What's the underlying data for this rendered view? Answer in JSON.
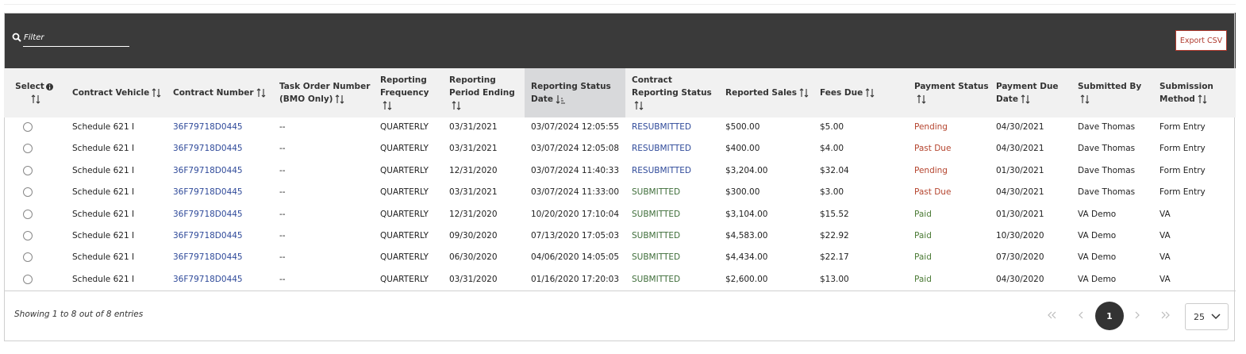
{
  "filter": {
    "placeholder": "Filter"
  },
  "export_button": "Export CSV",
  "table": {
    "headers": [
      "Select",
      "Contract Vehicle",
      "Contract Number",
      "Task Order Number (BMO Only)",
      "Reporting Frequency",
      "Reporting Period Ending",
      "Reporting Status Date",
      "Contract Reporting Status",
      "Reported Sales",
      "Fees Due",
      "Payment Status",
      "Payment Due Date",
      "Submitted By",
      "Submission Method"
    ],
    "rows": [
      [
        "Schedule 621 I",
        {
          "text": "36F79718D0445",
          "color": "#2f4a9a"
        },
        "--",
        "QUARTERLY",
        "03/31/2021",
        "03/07/2024 12:05:55",
        {
          "text": "RESUBMITTED",
          "color": "#2f4a9a"
        },
        "$500.00",
        "$5.00",
        {
          "text": "Pending",
          "color": "#b5452f"
        },
        "04/30/2021",
        "Dave Thomas",
        "Form Entry"
      ],
      [
        "Schedule 621 I",
        {
          "text": "36F79718D0445",
          "color": "#2f4a9a"
        },
        "--",
        "QUARTERLY",
        "03/31/2021",
        "03/07/2024 12:05:08",
        {
          "text": "RESUBMITTED",
          "color": "#2f4a9a"
        },
        "$400.00",
        "$4.00",
        {
          "text": "Past Due",
          "color": "#b5452f"
        },
        "04/30/2021",
        "Dave Thomas",
        "Form Entry"
      ],
      [
        "Schedule 621 I",
        {
          "text": "36F79718D0445",
          "color": "#2f4a9a"
        },
        "--",
        "QUARTERLY",
        "12/31/2020",
        "03/07/2024 11:40:33",
        {
          "text": "RESUBMITTED",
          "color": "#2f4a9a"
        },
        "$3,204.00",
        "$32.04",
        {
          "text": "Pending",
          "color": "#b5452f"
        },
        "01/30/2021",
        "Dave Thomas",
        "Form Entry"
      ],
      [
        "Schedule 621 I",
        {
          "text": "36F79718D0445",
          "color": "#2f4a9a"
        },
        "--",
        "QUARTERLY",
        "03/31/2021",
        "03/07/2024 11:33:00",
        {
          "text": "SUBMITTED",
          "color": "#3f6e3a"
        },
        "$300.00",
        "$3.00",
        {
          "text": "Past Due",
          "color": "#b5452f"
        },
        "04/30/2021",
        "Dave Thomas",
        "Form Entry"
      ],
      [
        "Schedule 621 I",
        {
          "text": "36F79718D0445",
          "color": "#2f4a9a"
        },
        "--",
        "QUARTERLY",
        "12/31/2020",
        "10/20/2020 17:10:04",
        {
          "text": "SUBMITTED",
          "color": "#3f6e3a"
        },
        "$3,104.00",
        "$15.52",
        {
          "text": "Paid",
          "color": "#4a7a34"
        },
        "01/30/2021",
        "VA Demo",
        "VA"
      ],
      [
        "Schedule 621 I",
        {
          "text": "36F79718D0445",
          "color": "#2f4a9a"
        },
        "--",
        "QUARTERLY",
        "09/30/2020",
        "07/13/2020 17:05:03",
        {
          "text": "SUBMITTED",
          "color": "#3f6e3a"
        },
        "$4,583.00",
        "$22.92",
        {
          "text": "Paid",
          "color": "#4a7a34"
        },
        "10/30/2020",
        "VA Demo",
        "VA"
      ],
      [
        "Schedule 621 I",
        {
          "text": "36F79718D0445",
          "color": "#2f4a9a"
        },
        "--",
        "QUARTERLY",
        "06/30/2020",
        "04/06/2020 14:05:05",
        {
          "text": "SUBMITTED",
          "color": "#3f6e3a"
        },
        "$4,434.00",
        "$22.17",
        {
          "text": "Paid",
          "color": "#4a7a34"
        },
        "07/30/2020",
        "VA Demo",
        "VA"
      ],
      [
        "Schedule 621 I",
        {
          "text": "36F79718D0445",
          "color": "#2f4a9a"
        },
        "--",
        "QUARTERLY",
        "03/31/2020",
        "01/16/2020 17:20:03",
        {
          "text": "SUBMITTED",
          "color": "#3f6e3a"
        },
        "$2,600.00",
        "$13.00",
        {
          "text": "Paid",
          "color": "#4a7a34"
        },
        "04/30/2020",
        "VA Demo",
        "VA"
      ]
    ]
  },
  "footer": {
    "summary": "Showing 1 to 8 out of 8 entries",
    "current_page": "1",
    "page_size": "25"
  }
}
